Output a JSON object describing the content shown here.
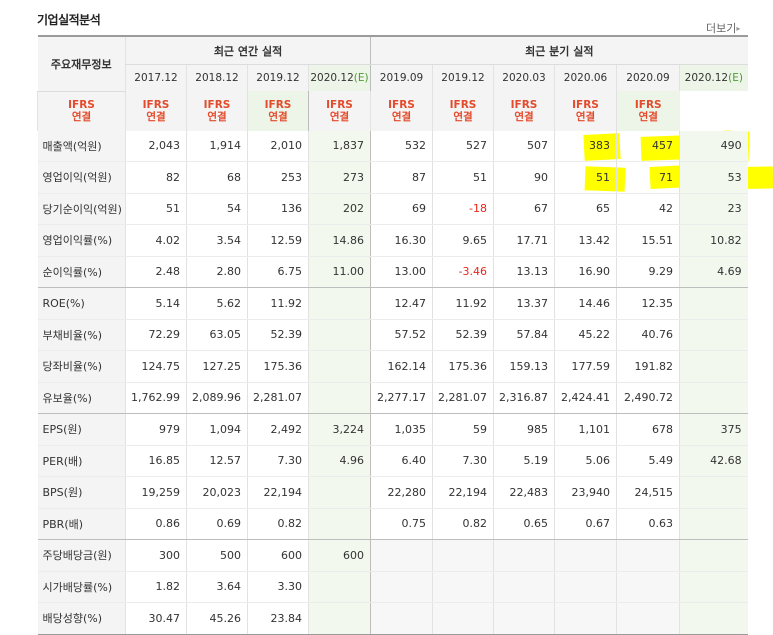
{
  "header": {
    "title": "기업실적분석",
    "more_label": "더보기",
    "main_label": "주요재무정보",
    "annual_label": "최근 연간 실적",
    "quarter_label": "최근 분기 실적",
    "basis_line1": "IFRS",
    "basis_line2": "연결"
  },
  "periods": {
    "annual": [
      "2017.12",
      "2018.12",
      "2019.12",
      "2020.12"
    ],
    "annual_est_mark": "(E)",
    "quarter": [
      "2019.09",
      "2019.12",
      "2020.03",
      "2020.06",
      "2020.09",
      "2020.12"
    ],
    "quarter_est_mark": "(E)"
  },
  "rows": [
    {
      "label": "매출액(억원)",
      "values": [
        "2,043",
        "1,914",
        "2,010",
        "1,837",
        "532",
        "527",
        "507",
        "383",
        "457",
        "490"
      ]
    },
    {
      "label": "영업이익(억원)",
      "values": [
        "82",
        "68",
        "253",
        "273",
        "87",
        "51",
        "90",
        "51",
        "71",
        "53"
      ]
    },
    {
      "label": "당기순이익(억원)",
      "values": [
        "51",
        "54",
        "136",
        "202",
        "69",
        "-18",
        "67",
        "65",
        "42",
        "23"
      ]
    },
    {
      "label": "영업이익률(%)",
      "values": [
        "4.02",
        "3.54",
        "12.59",
        "14.86",
        "16.30",
        "9.65",
        "17.71",
        "13.42",
        "15.51",
        "10.82"
      ]
    },
    {
      "label": "순이익률(%)",
      "values": [
        "2.48",
        "2.80",
        "6.75",
        "11.00",
        "13.00",
        "-3.46",
        "13.13",
        "16.90",
        "9.29",
        "4.69"
      ]
    },
    {
      "label": "ROE(%)",
      "values": [
        "5.14",
        "5.62",
        "11.92",
        "",
        "12.47",
        "11.92",
        "13.37",
        "14.46",
        "12.35",
        ""
      ]
    },
    {
      "label": "부채비율(%)",
      "values": [
        "72.29",
        "63.05",
        "52.39",
        "",
        "57.52",
        "52.39",
        "57.84",
        "45.22",
        "40.76",
        ""
      ]
    },
    {
      "label": "당좌비율(%)",
      "values": [
        "124.75",
        "127.25",
        "175.36",
        "",
        "162.14",
        "175.36",
        "159.13",
        "177.59",
        "191.82",
        ""
      ]
    },
    {
      "label": "유보율(%)",
      "values": [
        "1,762.99",
        "2,089.96",
        "2,281.07",
        "",
        "2,277.17",
        "2,281.07",
        "2,316.87",
        "2,424.41",
        "2,490.72",
        ""
      ]
    },
    {
      "label": "EPS(원)",
      "values": [
        "979",
        "1,094",
        "2,492",
        "3,224",
        "1,035",
        "59",
        "985",
        "1,101",
        "678",
        "375"
      ]
    },
    {
      "label": "PER(배)",
      "values": [
        "16.85",
        "12.57",
        "7.30",
        "4.96",
        "6.40",
        "7.30",
        "5.19",
        "5.06",
        "5.49",
        "42.68"
      ]
    },
    {
      "label": "BPS(원)",
      "values": [
        "19,259",
        "20,023",
        "22,194",
        "",
        "22,280",
        "22,194",
        "22,483",
        "23,940",
        "24,515",
        ""
      ]
    },
    {
      "label": "PBR(배)",
      "values": [
        "0.86",
        "0.69",
        "0.82",
        "",
        "0.75",
        "0.82",
        "0.65",
        "0.67",
        "0.63",
        ""
      ]
    },
    {
      "label": "주당배당금(원)",
      "values": [
        "300",
        "500",
        "600",
        "600",
        "",
        "",
        "",
        "",
        "",
        ""
      ]
    },
    {
      "label": "시가배당률(%)",
      "values": [
        "1.82",
        "3.64",
        "3.30",
        "",
        "",
        "",
        "",
        "",
        "",
        ""
      ]
    },
    {
      "label": "배당성향(%)",
      "values": [
        "30.47",
        "45.26",
        "23.84",
        "",
        "",
        "",
        "",
        "",
        "",
        ""
      ]
    }
  ],
  "colors": {
    "negative": "#e8251c",
    "ifrs": "#e34b2c",
    "estimate_bg": "#f3f8ef",
    "highlight": "#ffff00"
  }
}
